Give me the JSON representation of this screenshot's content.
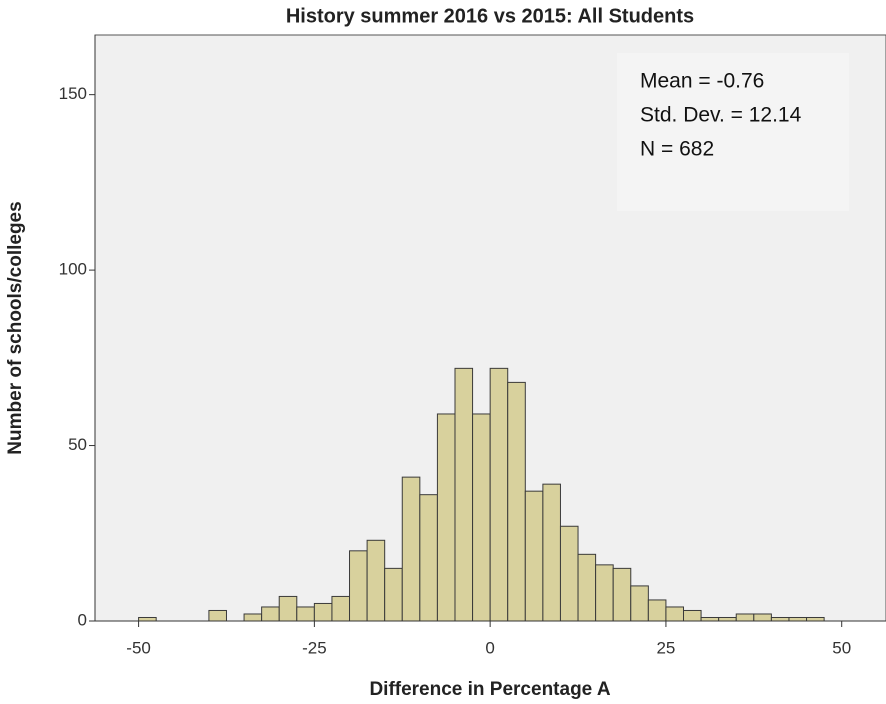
{
  "chart_data": {
    "type": "histogram",
    "title": "History summer 2016 vs 2015: All Students",
    "x_label": "Difference in Percentage A",
    "y_label": "Number of schools/colleges",
    "annotations": [
      "Mean = -0.76",
      "Std. Dev. = 12.14",
      "N = 682"
    ],
    "bins": [
      -50,
      -47.5,
      -45,
      -42.5,
      -40,
      -37.5,
      -35,
      -32.5,
      -30,
      -27.5,
      -25,
      -22.5,
      -20,
      -17.5,
      -15,
      -12.5,
      -10,
      -7.5,
      -5,
      -2.5,
      0,
      2.5,
      5,
      7.5,
      10,
      12.5,
      15,
      17.5,
      20,
      22.5,
      25,
      27.5,
      30,
      32.5,
      35,
      37.5,
      40,
      42.5,
      45,
      47.5
    ],
    "values": [
      1,
      0,
      0,
      0,
      3,
      0,
      2,
      4,
      7,
      4,
      5,
      7,
      20,
      23,
      15,
      41,
      36,
      59,
      72,
      59,
      72,
      68,
      37,
      39,
      27,
      19,
      16,
      15,
      10,
      6,
      4,
      3,
      1,
      1,
      2,
      2,
      1,
      1,
      1
    ],
    "color": "#d8d19d",
    "edge_color": "#3a3a3a",
    "background": "#f0f0f0",
    "xlim": [
      -56.2,
      56.3
    ],
    "ylim": [
      0,
      167
    ],
    "xticks": [
      -50,
      -25,
      0,
      25,
      50
    ],
    "yticks": [
      0,
      50,
      100,
      150
    ]
  }
}
